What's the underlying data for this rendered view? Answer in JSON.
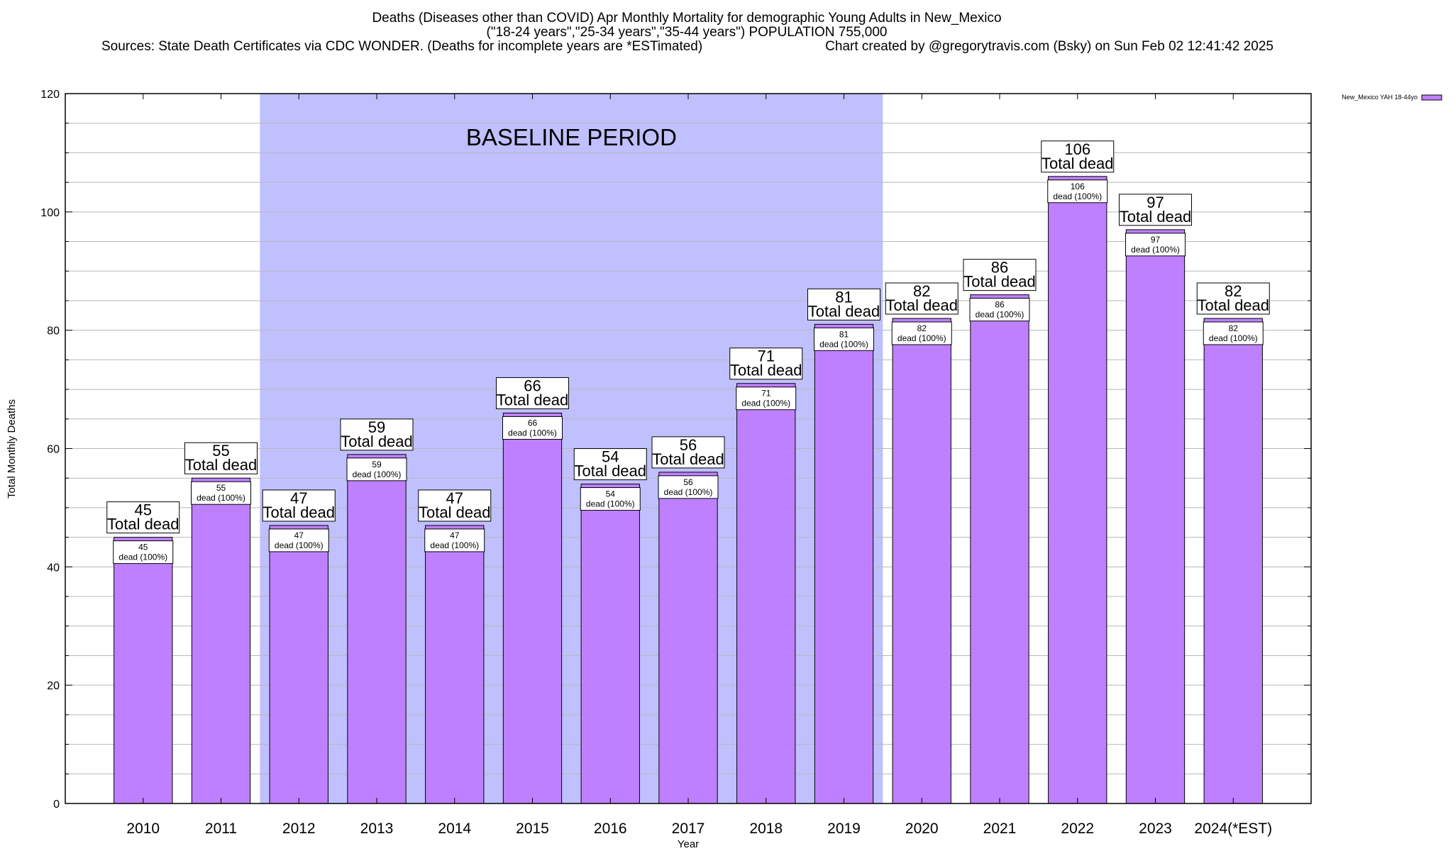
{
  "chart_data": {
    "type": "bar",
    "title": "Deaths (Diseases other than COVID) Apr Monthly Mortality for demographic Young Adults in New_Mexico",
    "subtitle": "(\"18-24 years\",\"25-34 years\",\"35-44 years\") POPULATION 755,000",
    "source_note": "Sources: State Death Certificates via CDC WONDER. (Deaths for incomplete years are *ESTimated)",
    "credit_note": "Chart created by @gregorytravis.com (Bsky) on Sun Feb 02 12:41:42 2025",
    "xlabel": "Year",
    "ylabel": "Total Monthly Deaths",
    "ylim": [
      0,
      120
    ],
    "yticks": [
      0,
      20,
      40,
      60,
      80,
      100,
      120
    ],
    "grid": true,
    "legend_position": "top-right",
    "categories": [
      "2010",
      "2011",
      "2012",
      "2013",
      "2014",
      "2015",
      "2016",
      "2017",
      "2018",
      "2019",
      "2020",
      "2021",
      "2022",
      "2023",
      "2024(*EST)"
    ],
    "series": [
      {
        "name": "New_Mexico YAH 18-44yo",
        "color": "#bf80ff",
        "values": [
          45,
          55,
          47,
          59,
          47,
          66,
          54,
          56,
          71,
          81,
          82,
          86,
          106,
          97,
          82
        ]
      }
    ],
    "total_label_suffix": "Total dead",
    "inner_label_suffix": "dead (100%)",
    "baseline_band": {
      "label": "BASELINE PERIOD",
      "start_category": "2012",
      "end_category": "2019",
      "color": "#c0c0ff"
    }
  }
}
